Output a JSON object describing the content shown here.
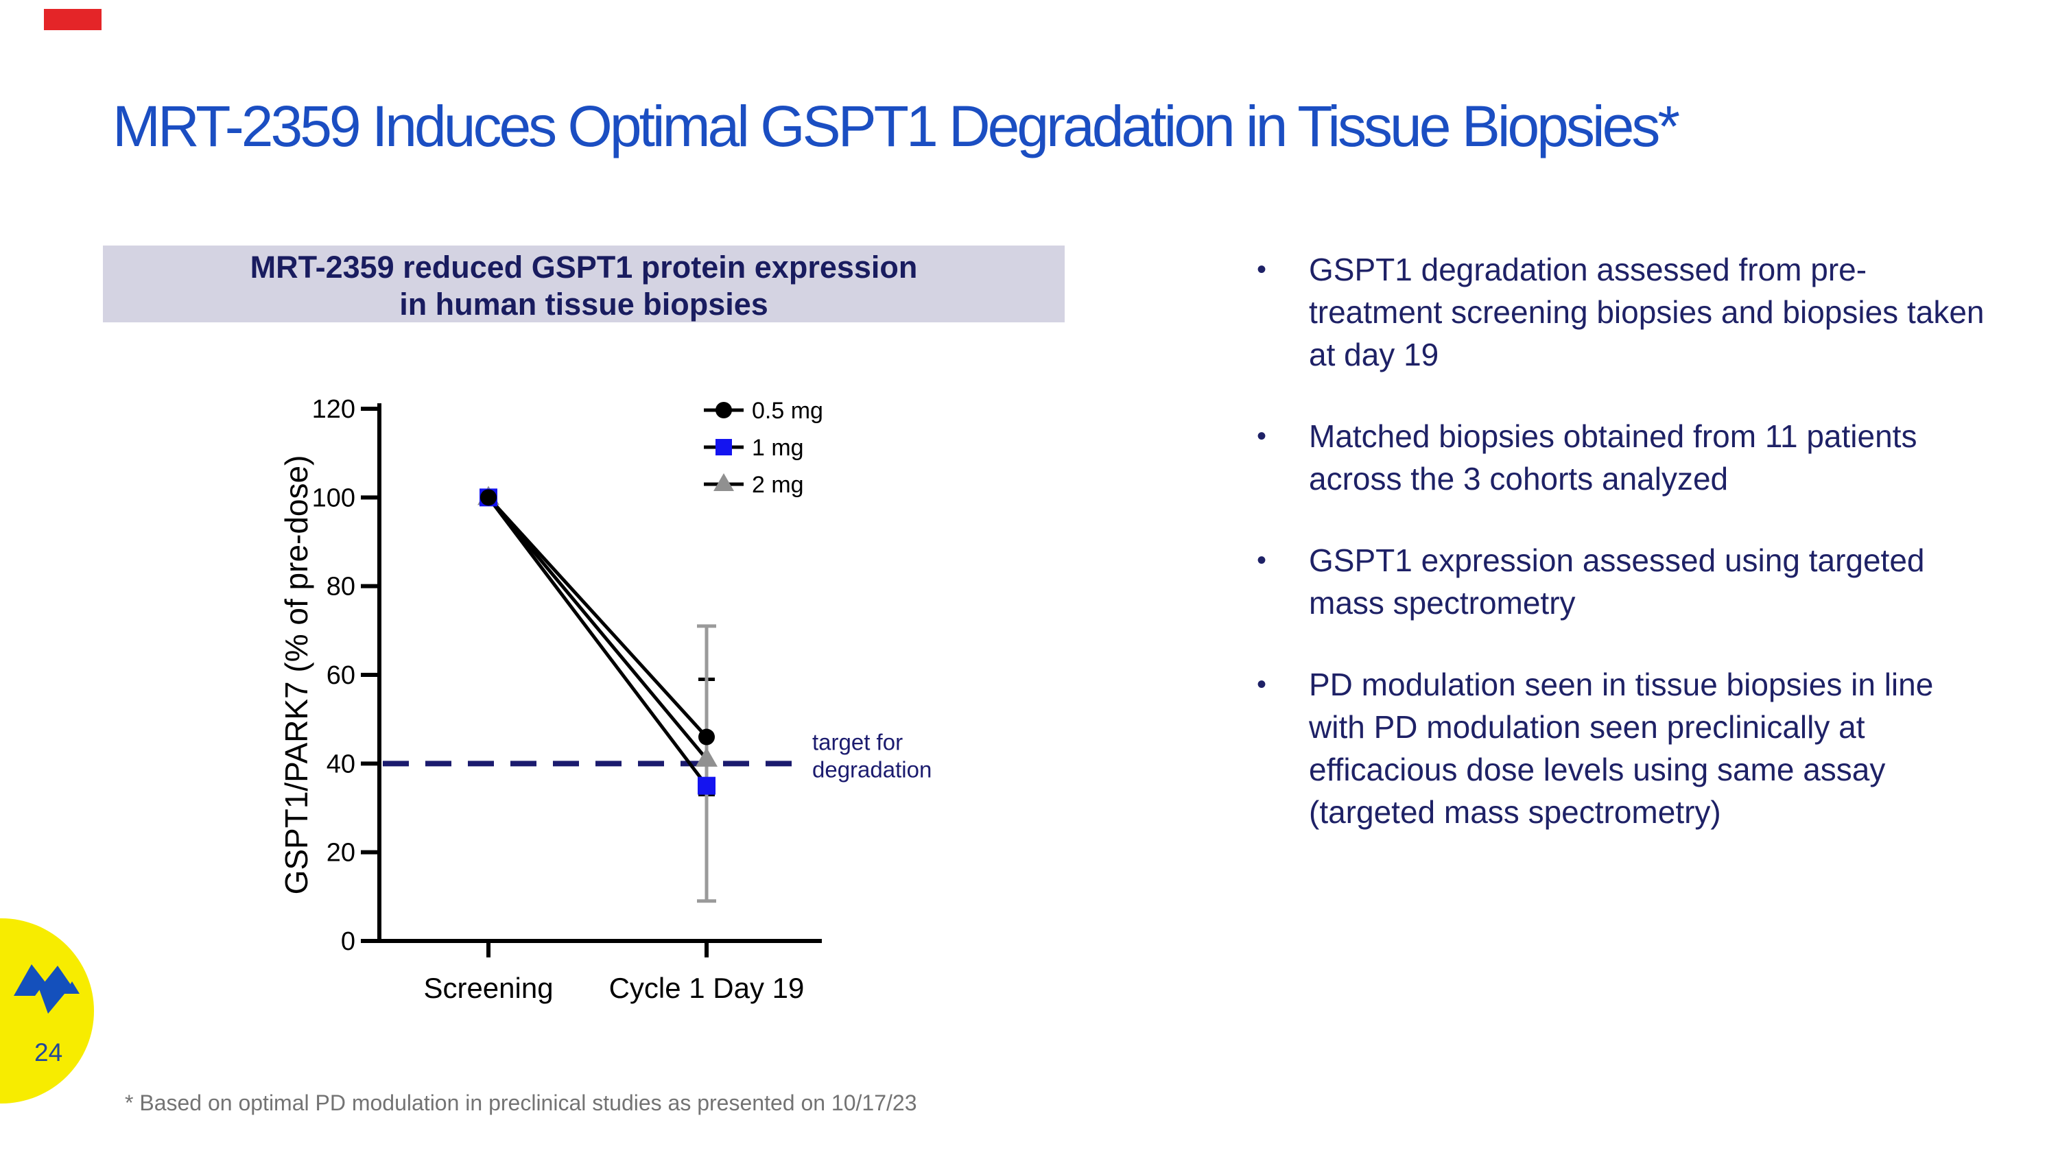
{
  "slide": {
    "title": "MRT-2359 Induces Optimal GSPT1 Degradation in Tissue Biopsies*",
    "page_number": "24",
    "footnote": "* Based on optimal PD modulation in preclinical studies as presented on 10/17/23"
  },
  "panel": {
    "header_line1": "MRT-2359 reduced GSPT1 protein expression",
    "header_line2": "in human tissue biopsies"
  },
  "bullets": [
    "GSPT1 degradation assessed from pre-treatment screening biopsies and biopsies taken at day 19",
    "Matched biopsies obtained from 11 patients across the 3 cohorts analyzed",
    "GSPT1 expression assessed using targeted mass spectrometry",
    "PD modulation seen in tissue biopsies in line with PD modulation seen preclinically at efficacious dose levels using same assay (targeted mass spectrometry)"
  ],
  "chart_data": {
    "type": "line",
    "title": "MRT-2359 reduced GSPT1 protein expression in human tissue biopsies",
    "categories": [
      "Screening",
      "Cycle 1 Day 19"
    ],
    "series": [
      {
        "name": "0.5 mg",
        "marker": "circle",
        "color": "#000000",
        "values": [
          100,
          46
        ],
        "error_bar": {
          "category": "Cycle 1 Day 19",
          "low": 33,
          "high": 59,
          "color": "#000000"
        }
      },
      {
        "name": "1 mg",
        "marker": "square",
        "color": "#1414f0",
        "values": [
          100,
          35
        ]
      },
      {
        "name": "2 mg",
        "marker": "triangle",
        "color": "#909090",
        "values": [
          100,
          41
        ],
        "error_bar": {
          "category": "Cycle 1 Day 19",
          "low": 9,
          "high": 71,
          "color": "#9a9a9a"
        }
      }
    ],
    "line_color": "#000000",
    "ylabel": "GSPT1/PARK7 (% of pre-dose)",
    "ylim": [
      0,
      120
    ],
    "yticks": [
      0,
      20,
      40,
      60,
      80,
      100,
      120
    ],
    "target_line": {
      "value": 40,
      "label_lines": [
        "target for",
        "degradation"
      ],
      "color": "#1b1b6e"
    },
    "grid": false,
    "legend_position": "top-right"
  },
  "colors": {
    "accent_red": "#e42528",
    "title_blue": "#1b4ec2",
    "navy_text": "#1e2166",
    "band_bg": "#d4d3e2",
    "band_text": "#191c5f",
    "footnote_gray": "#737373",
    "marker_blue": "#1414f0",
    "marker_gray": "#909090",
    "target_navy": "#1b1b6e",
    "logo_yellow": "#f7ec00",
    "logo_blue": "#1450bc",
    "page_number_blue": "#21489c",
    "axis_black": "#000000"
  }
}
